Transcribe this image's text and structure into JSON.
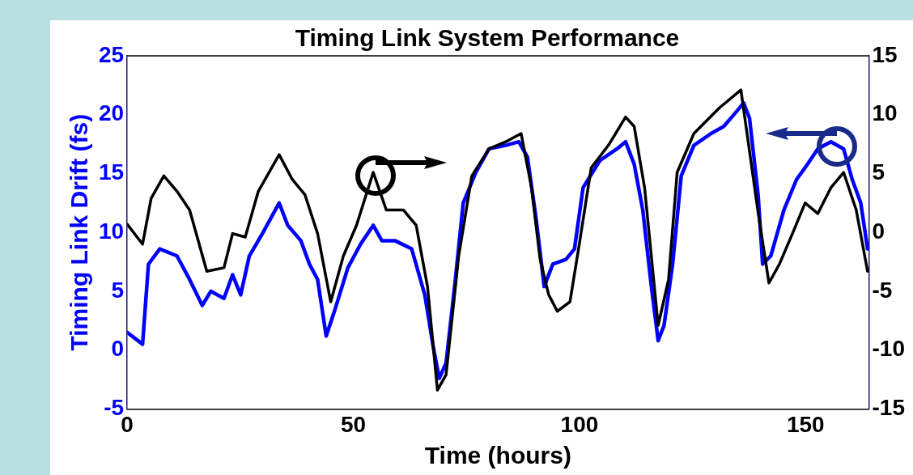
{
  "chart_data": {
    "type": "line",
    "title": "Timing Link System Performance",
    "xlabel": "Time (hours)",
    "ylabel": "Timing Link Drift (fs)",
    "xlim": [
      0,
      164
    ],
    "xticks": [
      0,
      50,
      100,
      150
    ],
    "ylim": [
      -5,
      25
    ],
    "yticks": [
      -5,
      0,
      5,
      10,
      15,
      20,
      25
    ],
    "y2lim": [
      -15,
      15
    ],
    "y2ticks": [
      -15,
      -10,
      -5,
      0,
      5,
      10,
      15
    ],
    "grid": false,
    "series": [
      {
        "color": "#0000ff",
        "x": [
          0,
          3.4,
          4.7,
          7.2,
          11,
          13.8,
          16.6,
          18.5,
          21.4,
          23.3,
          25.1,
          27,
          29.9,
          33.6,
          35.5,
          38.4,
          40.3,
          42.1,
          44,
          45.9,
          48.8,
          51.6,
          54.4,
          56.3,
          59.2,
          62.9,
          65.8,
          67.7,
          69,
          70.5,
          72.4,
          74.3,
          77.1,
          80,
          83.7,
          86.6,
          88.5,
          90.4,
          92.2,
          94.1,
          97,
          98.9,
          100.8,
          104.5,
          108.3,
          110.2,
          112.1,
          114,
          115.9,
          117.4,
          118.7,
          120.6,
          122.5,
          125.3,
          129.1,
          131.9,
          134.8,
          136.3,
          137.6,
          139.5,
          140.5,
          142.3,
          145.2,
          148,
          149.9,
          152.7,
          155.6,
          158.4,
          160.3,
          162.2,
          163.7
        ],
        "values": [
          1.5,
          0.5,
          7.3,
          8.6,
          8,
          6,
          3.8,
          5,
          4.4,
          6.4,
          4.7,
          8,
          9.9,
          12.5,
          10.6,
          9.3,
          7.3,
          6,
          1.2,
          3.4,
          7,
          9,
          10.6,
          9.3,
          9.3,
          8.6,
          4.7,
          0.2,
          -2.4,
          -1.1,
          5.4,
          12.5,
          15.1,
          17.1,
          17.4,
          17.7,
          16.4,
          11.2,
          5.4,
          7.3,
          7.7,
          8.6,
          13.8,
          16.1,
          17.1,
          17.7,
          15.8,
          11.9,
          5.4,
          0.8,
          2.1,
          7.3,
          14.8,
          17.4,
          18.4,
          19,
          20.3,
          21,
          19.7,
          13.2,
          7.3,
          8,
          11.9,
          14.5,
          15.5,
          17.1,
          17.7,
          17.1,
          14.5,
          12.5,
          8.6
        ]
      },
      {
        "color": "#000000",
        "axis": "y2",
        "x": [
          0,
          3.4,
          5.3,
          8.1,
          11,
          13.8,
          17.6,
          21.4,
          23.3,
          26.1,
          29,
          33.6,
          36.5,
          39.3,
          42.1,
          45,
          47.8,
          50.7,
          54.4,
          57.3,
          61.1,
          63.9,
          66.4,
          68.6,
          70.5,
          73.3,
          76.2,
          80,
          83.7,
          87.1,
          89.4,
          91.3,
          93.2,
          95.1,
          97.9,
          99.8,
          102.6,
          106.4,
          110.2,
          112.1,
          114.4,
          117.4,
          119.7,
          121.6,
          125.3,
          131,
          135.7,
          137.6,
          139.5,
          141.9,
          144.2,
          147.1,
          149.9,
          152.7,
          155.6,
          158.4,
          161.2,
          163.7
        ],
        "values": [
          0.7,
          -1,
          2.9,
          4.8,
          3.5,
          1.9,
          -3.3,
          -3,
          -0.1,
          -0.4,
          3.5,
          6.6,
          4.5,
          3.2,
          -0.1,
          -5.9,
          -2,
          0.6,
          5.1,
          1.9,
          1.9,
          0.6,
          -4.6,
          -13.4,
          -12.1,
          -2,
          4.8,
          7.1,
          7.7,
          8.4,
          3.8,
          -2.3,
          -5.3,
          -6.7,
          -5.9,
          -1.4,
          5.5,
          7.4,
          9.8,
          9,
          3.8,
          -7.9,
          -4,
          5.1,
          8.4,
          10.6,
          12.1,
          6.9,
          1.7,
          -4.3,
          -2.7,
          -0.1,
          2.5,
          1.6,
          3.8,
          5.1,
          1.9,
          -3.3
        ]
      }
    ]
  }
}
